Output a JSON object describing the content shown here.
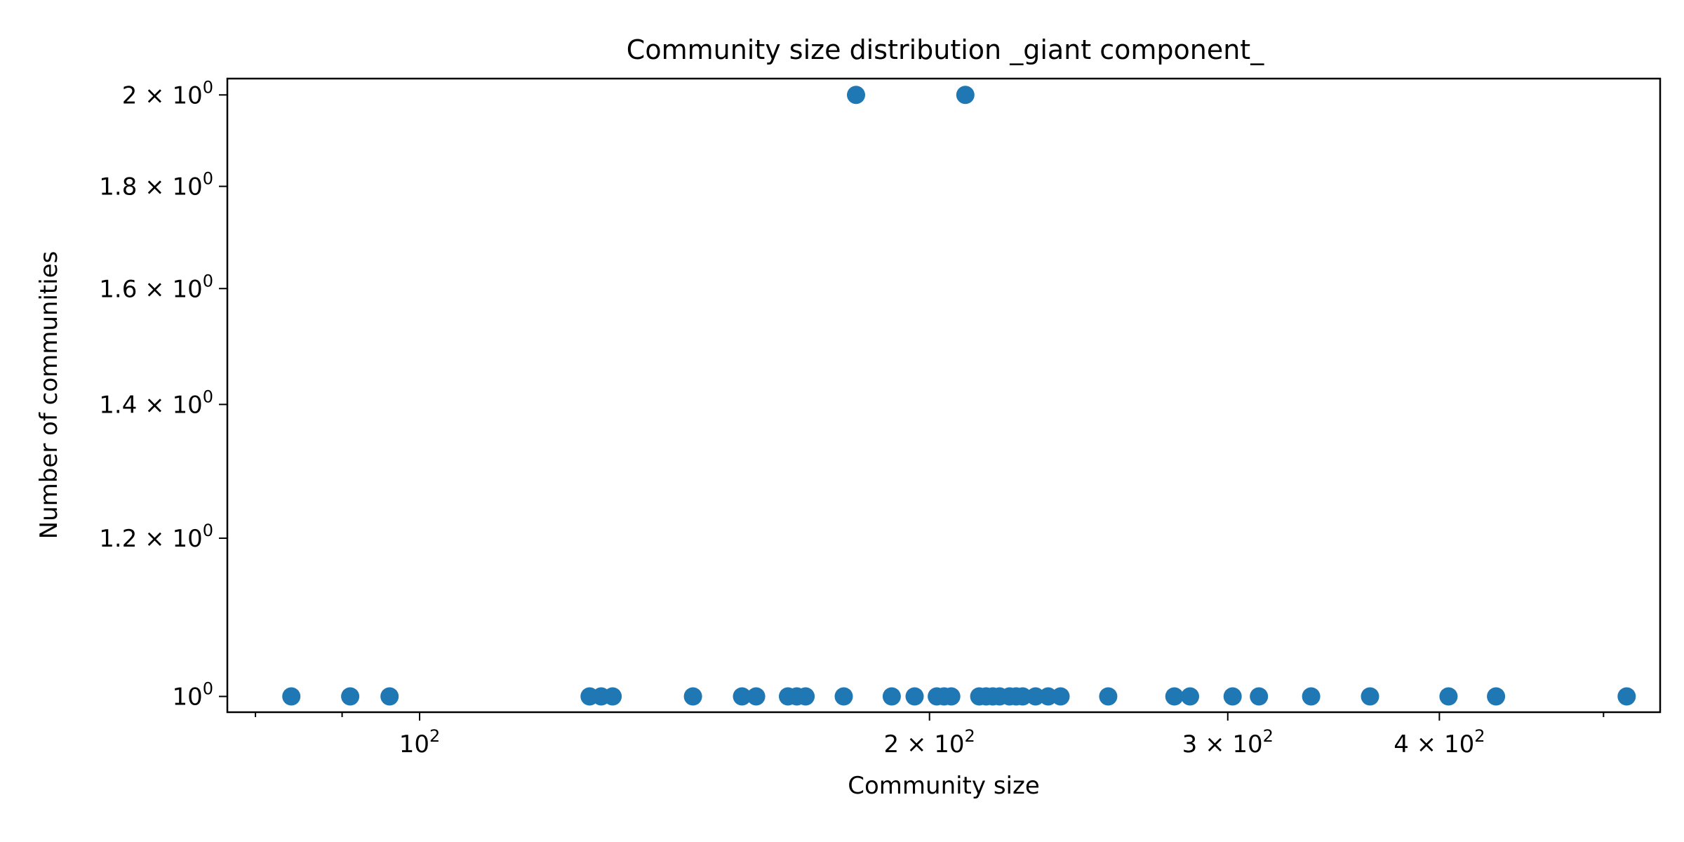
{
  "chart_data": {
    "type": "scatter",
    "title": "Community size distribution _giant component_",
    "xlabel": "Community size",
    "ylabel": "Number of communities",
    "xscale": "log",
    "yscale": "log",
    "xlim": [
      77,
      540
    ],
    "ylim": [
      0.982,
      2.038
    ],
    "grid": false,
    "legend": "none",
    "color": "#1f77b4",
    "x_ticks": [
      {
        "value": 100,
        "base": "10",
        "exp": "2"
      },
      {
        "value": 200,
        "base": "2 × 10",
        "exp": "2"
      },
      {
        "value": 300,
        "base": "3 × 10",
        "exp": "2"
      },
      {
        "value": 400,
        "base": "4 × 10",
        "exp": "2"
      }
    ],
    "x_minor_ticks": [
      80,
      90,
      500
    ],
    "y_ticks": [
      {
        "value": 1.0,
        "base": "10",
        "exp": "0"
      },
      {
        "value": 1.2,
        "base": "1.2 × 10",
        "exp": "0"
      },
      {
        "value": 1.4,
        "base": "1.4 × 10",
        "exp": "0"
      },
      {
        "value": 1.6,
        "base": "1.6 × 10",
        "exp": "0"
      },
      {
        "value": 1.8,
        "base": "1.8 × 10",
        "exp": "0"
      },
      {
        "value": 2.0,
        "base": "2 × 10",
        "exp": "0"
      }
    ],
    "points": [
      {
        "x": 84,
        "y": 1
      },
      {
        "x": 91,
        "y": 1
      },
      {
        "x": 96,
        "y": 1
      },
      {
        "x": 126,
        "y": 1
      },
      {
        "x": 128,
        "y": 1
      },
      {
        "x": 130,
        "y": 1
      },
      {
        "x": 145,
        "y": 1
      },
      {
        "x": 155,
        "y": 1
      },
      {
        "x": 158,
        "y": 1
      },
      {
        "x": 165,
        "y": 1
      },
      {
        "x": 167,
        "y": 1
      },
      {
        "x": 169,
        "y": 1
      },
      {
        "x": 178,
        "y": 1
      },
      {
        "x": 181,
        "y": 2
      },
      {
        "x": 190,
        "y": 1
      },
      {
        "x": 196,
        "y": 1
      },
      {
        "x": 202,
        "y": 1
      },
      {
        "x": 204,
        "y": 1
      },
      {
        "x": 206,
        "y": 1
      },
      {
        "x": 210,
        "y": 2
      },
      {
        "x": 214,
        "y": 1
      },
      {
        "x": 216,
        "y": 1
      },
      {
        "x": 218,
        "y": 1
      },
      {
        "x": 220,
        "y": 1
      },
      {
        "x": 223,
        "y": 1
      },
      {
        "x": 225,
        "y": 1
      },
      {
        "x": 227,
        "y": 1
      },
      {
        "x": 231,
        "y": 1
      },
      {
        "x": 235,
        "y": 1
      },
      {
        "x": 239,
        "y": 1
      },
      {
        "x": 255,
        "y": 1
      },
      {
        "x": 279,
        "y": 1
      },
      {
        "x": 285,
        "y": 1
      },
      {
        "x": 302,
        "y": 1
      },
      {
        "x": 313,
        "y": 1
      },
      {
        "x": 336,
        "y": 1
      },
      {
        "x": 364,
        "y": 1
      },
      {
        "x": 405,
        "y": 1
      },
      {
        "x": 432,
        "y": 1
      },
      {
        "x": 516,
        "y": 1
      }
    ]
  }
}
